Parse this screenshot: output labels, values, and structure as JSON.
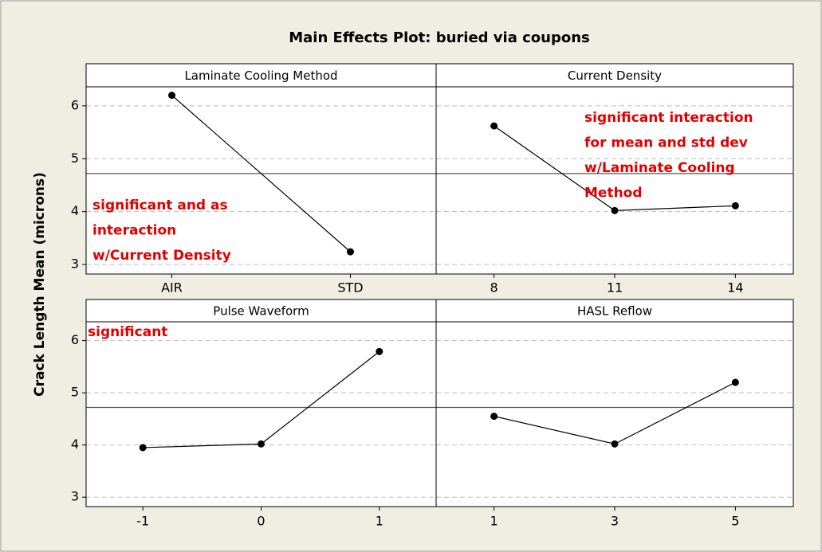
{
  "chart_data": {
    "title": "Main Effects Plot: buried via coupons",
    "y_label": "Crack Length Mean (microns)",
    "ylim": [
      2.82,
      6.36
    ],
    "yticks": [
      3,
      4,
      5,
      6
    ],
    "grid": true,
    "mean_line": 4.72,
    "color": "#000000",
    "annotation_color": "#e00000",
    "panels": [
      {
        "type": "line",
        "title": "Laminate Cooling Method",
        "categories": [
          "AIR",
          "STD"
        ],
        "values": [
          6.2,
          3.24
        ],
        "annotation": [
          "significant and as",
          "interaction",
          "w/Current Density"
        ]
      },
      {
        "type": "line",
        "title": "Current Density",
        "categories": [
          "8",
          "11",
          "14"
        ],
        "values": [
          5.62,
          4.02,
          4.11
        ],
        "annotation": [
          "significant interaction",
          "for mean and std dev",
          "w/Laminate Cooling",
          "Method"
        ]
      },
      {
        "type": "line",
        "title": "Pulse Waveform",
        "categories": [
          "-1",
          "0",
          "1"
        ],
        "values": [
          3.95,
          4.02,
          5.79
        ],
        "annotation": [
          "significant"
        ]
      },
      {
        "type": "line",
        "title": "HASL Reflow",
        "categories": [
          "1",
          "3",
          "5"
        ],
        "values": [
          4.55,
          4.02,
          5.2
        ]
      }
    ]
  }
}
